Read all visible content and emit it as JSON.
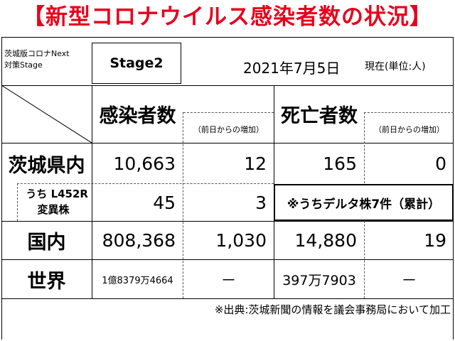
{
  "title": "【新型コロナウイルス感染者数の状況】",
  "header": {
    "stage_label_line1": "茨城版コロナNext",
    "stage_label_line2": "対策Stage",
    "stage_value": "Stage2",
    "date": "2021年7月5日",
    "date_note": "現在(単位:人)"
  },
  "columns": {
    "infected": "感染者数",
    "infected_increase": "（前日からの増加）",
    "deaths": "死亡者数",
    "deaths_increase": "（前日からの増加）"
  },
  "rows": {
    "ibaraki": {
      "label": "茨城県内",
      "infected": "10,663",
      "infected_increase": "12",
      "deaths": "165",
      "deaths_increase": "0"
    },
    "variant": {
      "label_line1": "うち L452R",
      "label_line2": "変異株",
      "infected": "45",
      "infected_increase": "3",
      "note": "※うちデルタ株7件（累計）"
    },
    "domestic": {
      "label": "国内",
      "infected": "808,368",
      "infected_increase": "1,030",
      "deaths": "14,880",
      "deaths_increase": "19"
    },
    "world": {
      "label": "世界",
      "infected": "1億8379万4664",
      "infected_increase": "－",
      "deaths": "397万7903",
      "deaths_increase": "－"
    }
  },
  "footer": "※出典:茨城新聞の情報を議会事務局において加工"
}
